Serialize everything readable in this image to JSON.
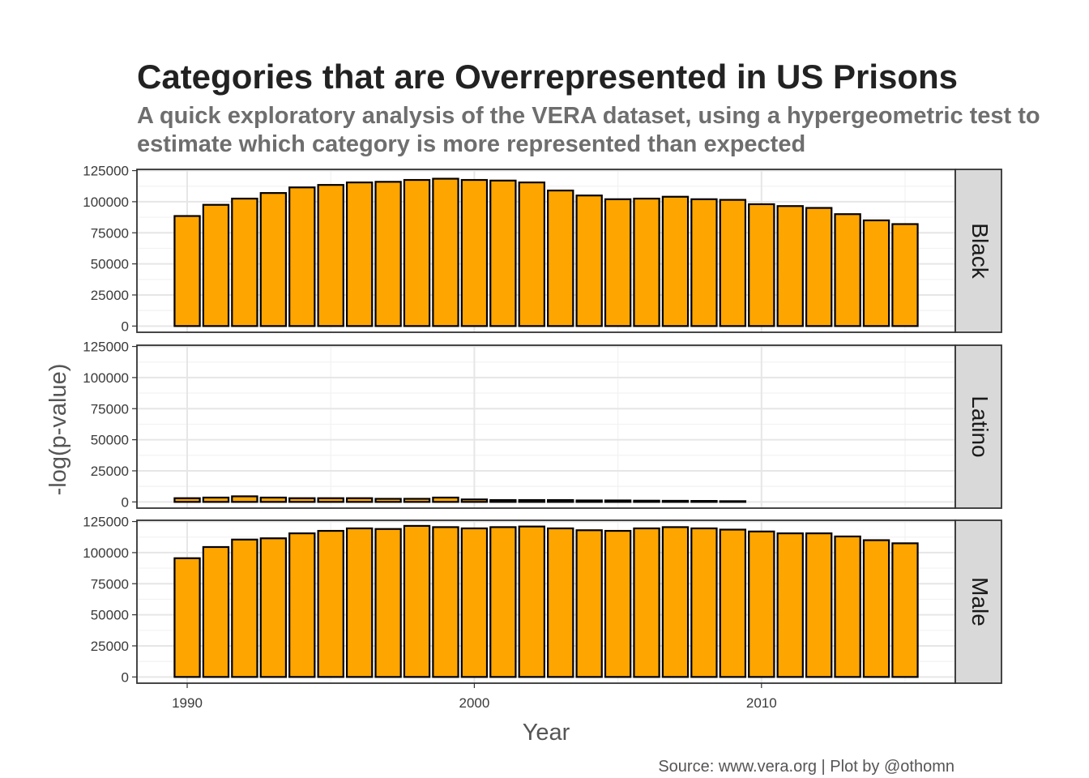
{
  "chart_data": {
    "type": "bar",
    "title": "Categories that are Overrepresented in US Prisons",
    "subtitle_lines": [
      "A quick exploratory analysis of the VERA dataset, using a hypergeometric test to",
      "estimate which category is more represented than expected"
    ],
    "xlabel": "Year",
    "ylabel": "-log(p-value)",
    "caption": "Source: www.vera.org | Plot by @othomn",
    "x_ticks": [
      1990,
      2000,
      2010
    ],
    "y_ticks": [
      0,
      25000,
      50000,
      75000,
      100000,
      125000
    ],
    "xlim": [
      1988.25,
      2016.75
    ],
    "ylim": [
      -5000,
      126000
    ],
    "grid": true,
    "bar_color": "#FFA500",
    "bar_outline": "#000000",
    "strip_color": "#D9D9D9",
    "x": [
      1990,
      1991,
      1992,
      1993,
      1994,
      1995,
      1996,
      1997,
      1998,
      1999,
      2000,
      2001,
      2002,
      2003,
      2004,
      2005,
      2006,
      2007,
      2008,
      2009,
      2010,
      2011,
      2012,
      2013,
      2014,
      2015
    ],
    "panels": [
      {
        "name": "Black",
        "values": [
          88500,
          97500,
          102500,
          107000,
          111500,
          113500,
          115500,
          116000,
          117500,
          118500,
          117500,
          117000,
          115500,
          109000,
          105000,
          102000,
          102500,
          104000,
          102000,
          101500,
          98000,
          96500,
          95000,
          90000,
          85000,
          82000
        ]
      },
      {
        "name": "Latino",
        "values": [
          3000,
          3500,
          4500,
          3500,
          3000,
          3000,
          3000,
          2500,
          2500,
          3500,
          2000,
          1500,
          1500,
          1500,
          1200,
          1200,
          1000,
          900,
          800,
          600,
          null,
          null,
          null,
          null,
          null,
          null
        ]
      },
      {
        "name": "Male",
        "values": [
          95500,
          104500,
          110500,
          111500,
          115500,
          117500,
          119500,
          119000,
          121500,
          120500,
          119500,
          120500,
          121000,
          119500,
          118000,
          117500,
          119500,
          120500,
          119500,
          118500,
          117000,
          115500,
          115500,
          113000,
          110000,
          107500
        ]
      }
    ]
  }
}
